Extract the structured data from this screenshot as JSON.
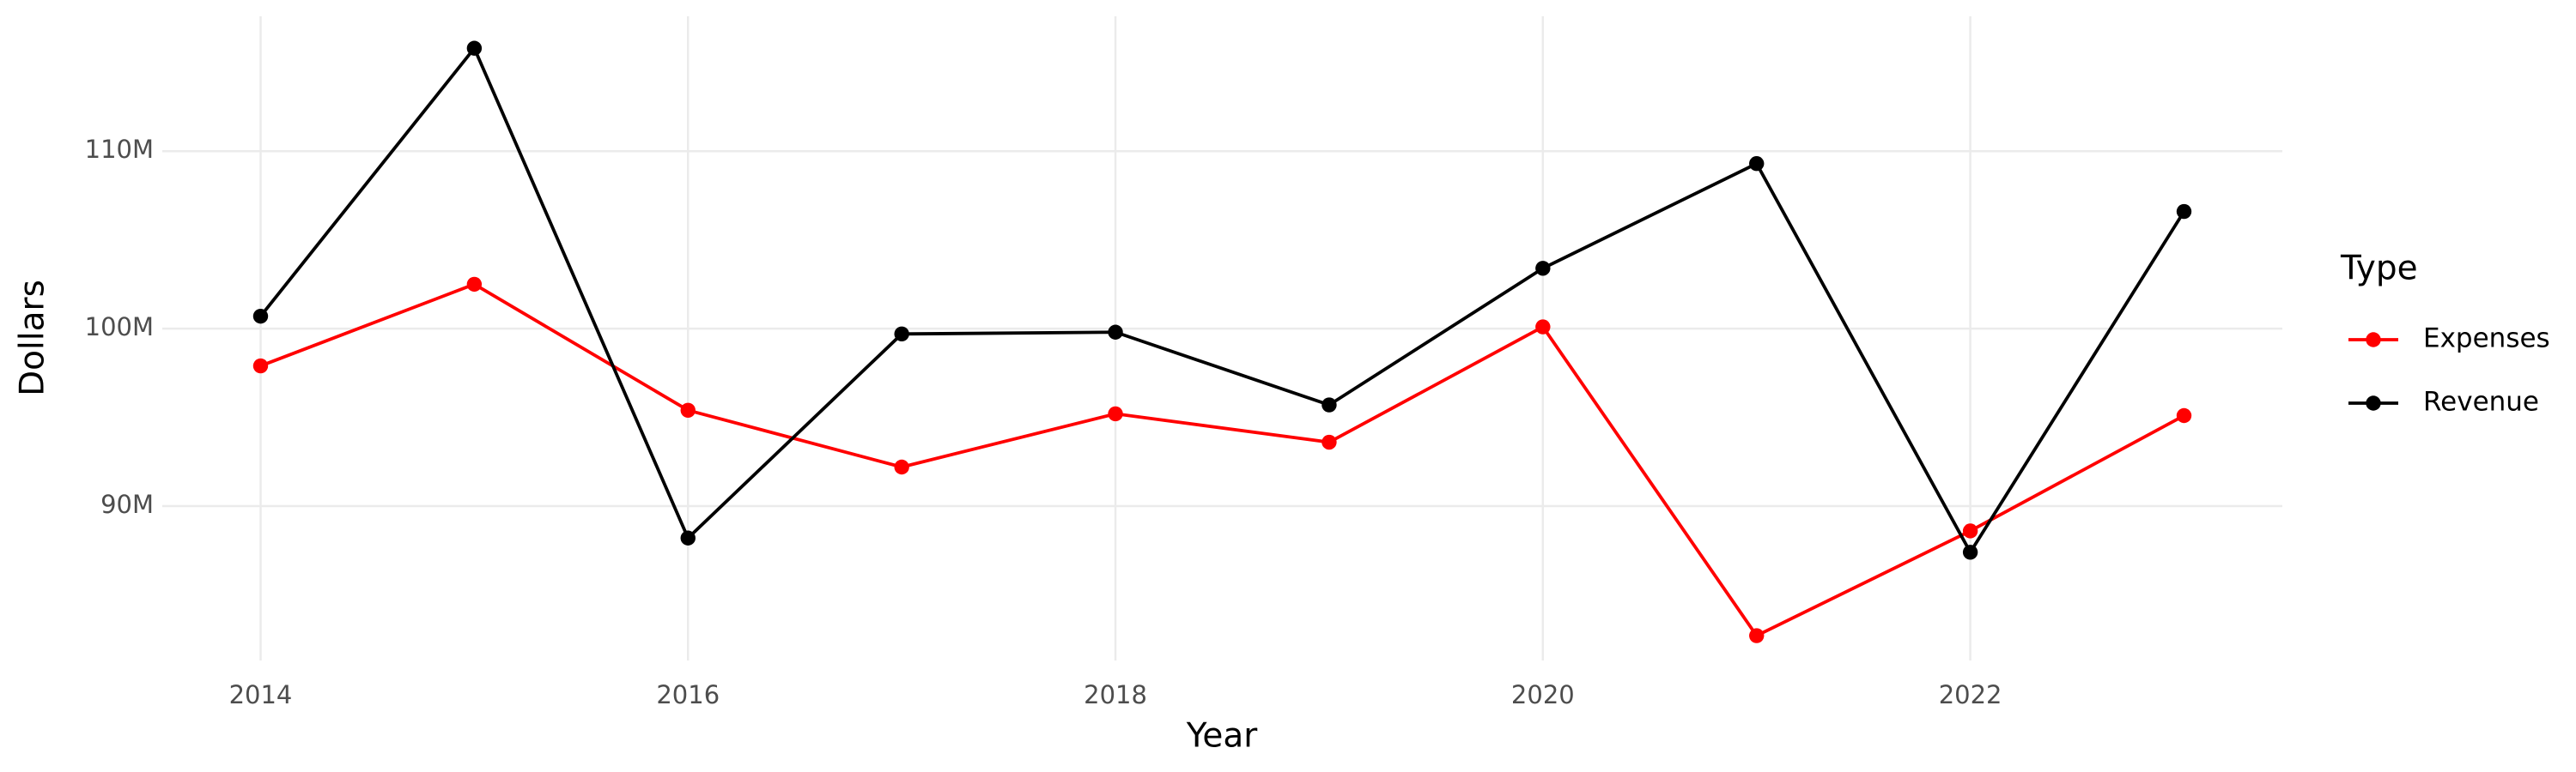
{
  "chart_data": {
    "type": "line",
    "x_label": "Year",
    "y_label": "Dollars",
    "legend_title": "Type",
    "x": [
      2014,
      2015,
      2016,
      2017,
      2018,
      2019,
      2020,
      2021,
      2022,
      2023
    ],
    "series": [
      {
        "name": "Expenses",
        "color": "#ff0000",
        "values": [
          97900000,
          102500000,
          95400000,
          92200000,
          95200000,
          93600000,
          100100000,
          82700000,
          88600000,
          95100000
        ]
      },
      {
        "name": "Revenue",
        "color": "#000000",
        "values": [
          100700000,
          115800000,
          88200000,
          99700000,
          99800000,
          95700000,
          103400000,
          109300000,
          87400000,
          106600000
        ]
      }
    ],
    "xlim": [
      2013.54,
      2023.46
    ],
    "xticks": [
      2014,
      2016,
      2018,
      2020,
      2022
    ],
    "ylim": [
      81300000,
      117600000
    ],
    "yticks": [
      {
        "value": 90000000,
        "label": "90M"
      },
      {
        "value": 100000000,
        "label": "100M"
      },
      {
        "value": 110000000,
        "label": "110M"
      }
    ],
    "grid": true,
    "legend_position": "right"
  }
}
